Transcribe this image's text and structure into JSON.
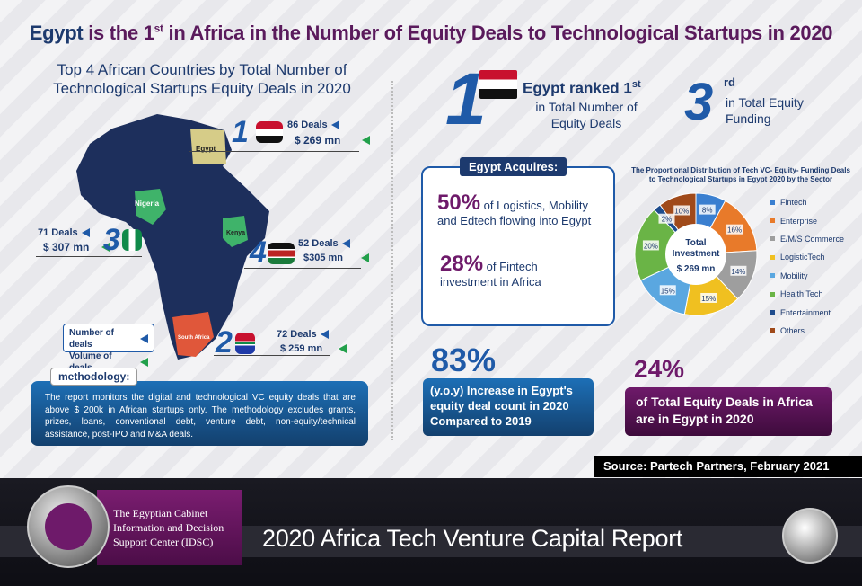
{
  "header": {
    "title_egypt": "Egypt",
    "title_prefix": "is the 1",
    "title_sup": "st",
    "title_suffix": "in Africa in the Number of Equity Deals to Technological Startups in 2020"
  },
  "left": {
    "title": "Top 4 African Countries by Total Number of Technological Startups Equity Deals in 2020",
    "countries": [
      {
        "rank": "1",
        "name": "Egypt",
        "deals": "86 Deals",
        "volume": "$ 269 mn"
      },
      {
        "rank": "3",
        "name": "Nigeria",
        "deals": "71 Deals",
        "volume": "$ 307 mn"
      },
      {
        "rank": "4",
        "name": "Kenya",
        "deals": "52 Deals",
        "volume": "$305 mn"
      },
      {
        "rank": "2",
        "name": "South Africa",
        "deals": "72 Deals",
        "volume": "$ 259 mn"
      }
    ],
    "legend": {
      "deals": "Number of deals",
      "volume": "Volume of deals"
    },
    "methodology_label": "methodology:",
    "methodology_text": "The report monitors the digital and technological VC equity deals that are above $ 200k in African startups only. The methodology excludes grants, prizes, loans, conventional debt, venture debt, non-equity/technical assistance, post-IPO and M&A deals."
  },
  "right": {
    "rank1_num": "1",
    "rank1_title": "Egypt ranked 1",
    "rank1_sup": "st",
    "rank1_text": "in Total Number of Equity Deals",
    "rank3_num": "3",
    "rank3_sup": "rd",
    "rank3_text": "in Total Equity Funding",
    "acquires_label": "Egypt Acquires:",
    "acq1_pct": "50%",
    "acq1_text": "of Logistics, Mobility and Edtech flowing into Egypt",
    "acq2_pct": "28%",
    "acq2_text": "of Fintech investment in Africa",
    "stat83": "83%",
    "stat83_text": "(y.o.y) Increase in Egypt's equity deal count in 2020 Compared to 2019",
    "stat24": "24%",
    "stat24_text": "of Total Equity Deals in Africa are in Egypt in 2020",
    "source": "Source: Partech Partners, February 2021"
  },
  "chart_data": {
    "type": "pie",
    "title": "The Proportional Distribution of Tech VC- Equity- Funding Deals to Technological Startups in Egypt 2020 by the Sector",
    "center_label": "Total Investment",
    "center_value": "$ 269 mn",
    "categories": [
      "Fintech",
      "Enterprise",
      "E/M/S Commerce",
      "LogisticTech",
      "Mobility",
      "Health Tech",
      "Entertainment",
      "Others"
    ],
    "values": [
      8,
      16,
      14,
      15,
      15,
      20,
      2,
      10
    ],
    "labels": [
      "8%",
      "16%",
      "14%",
      "15%",
      "15%",
      "20%",
      "2%",
      "10%"
    ],
    "colors": [
      "#3a7fd0",
      "#e87a2a",
      "#9e9e9e",
      "#f0c020",
      "#5aa7e0",
      "#6ab446",
      "#1d4b8c",
      "#a04a1a"
    ]
  },
  "footer": {
    "org_line1": "The Egyptian Cabinet",
    "org_line2": "Information and Decision",
    "org_line3": "Support Center (IDSC)",
    "report_title": "2020 Africa Tech Venture Capital Report"
  }
}
